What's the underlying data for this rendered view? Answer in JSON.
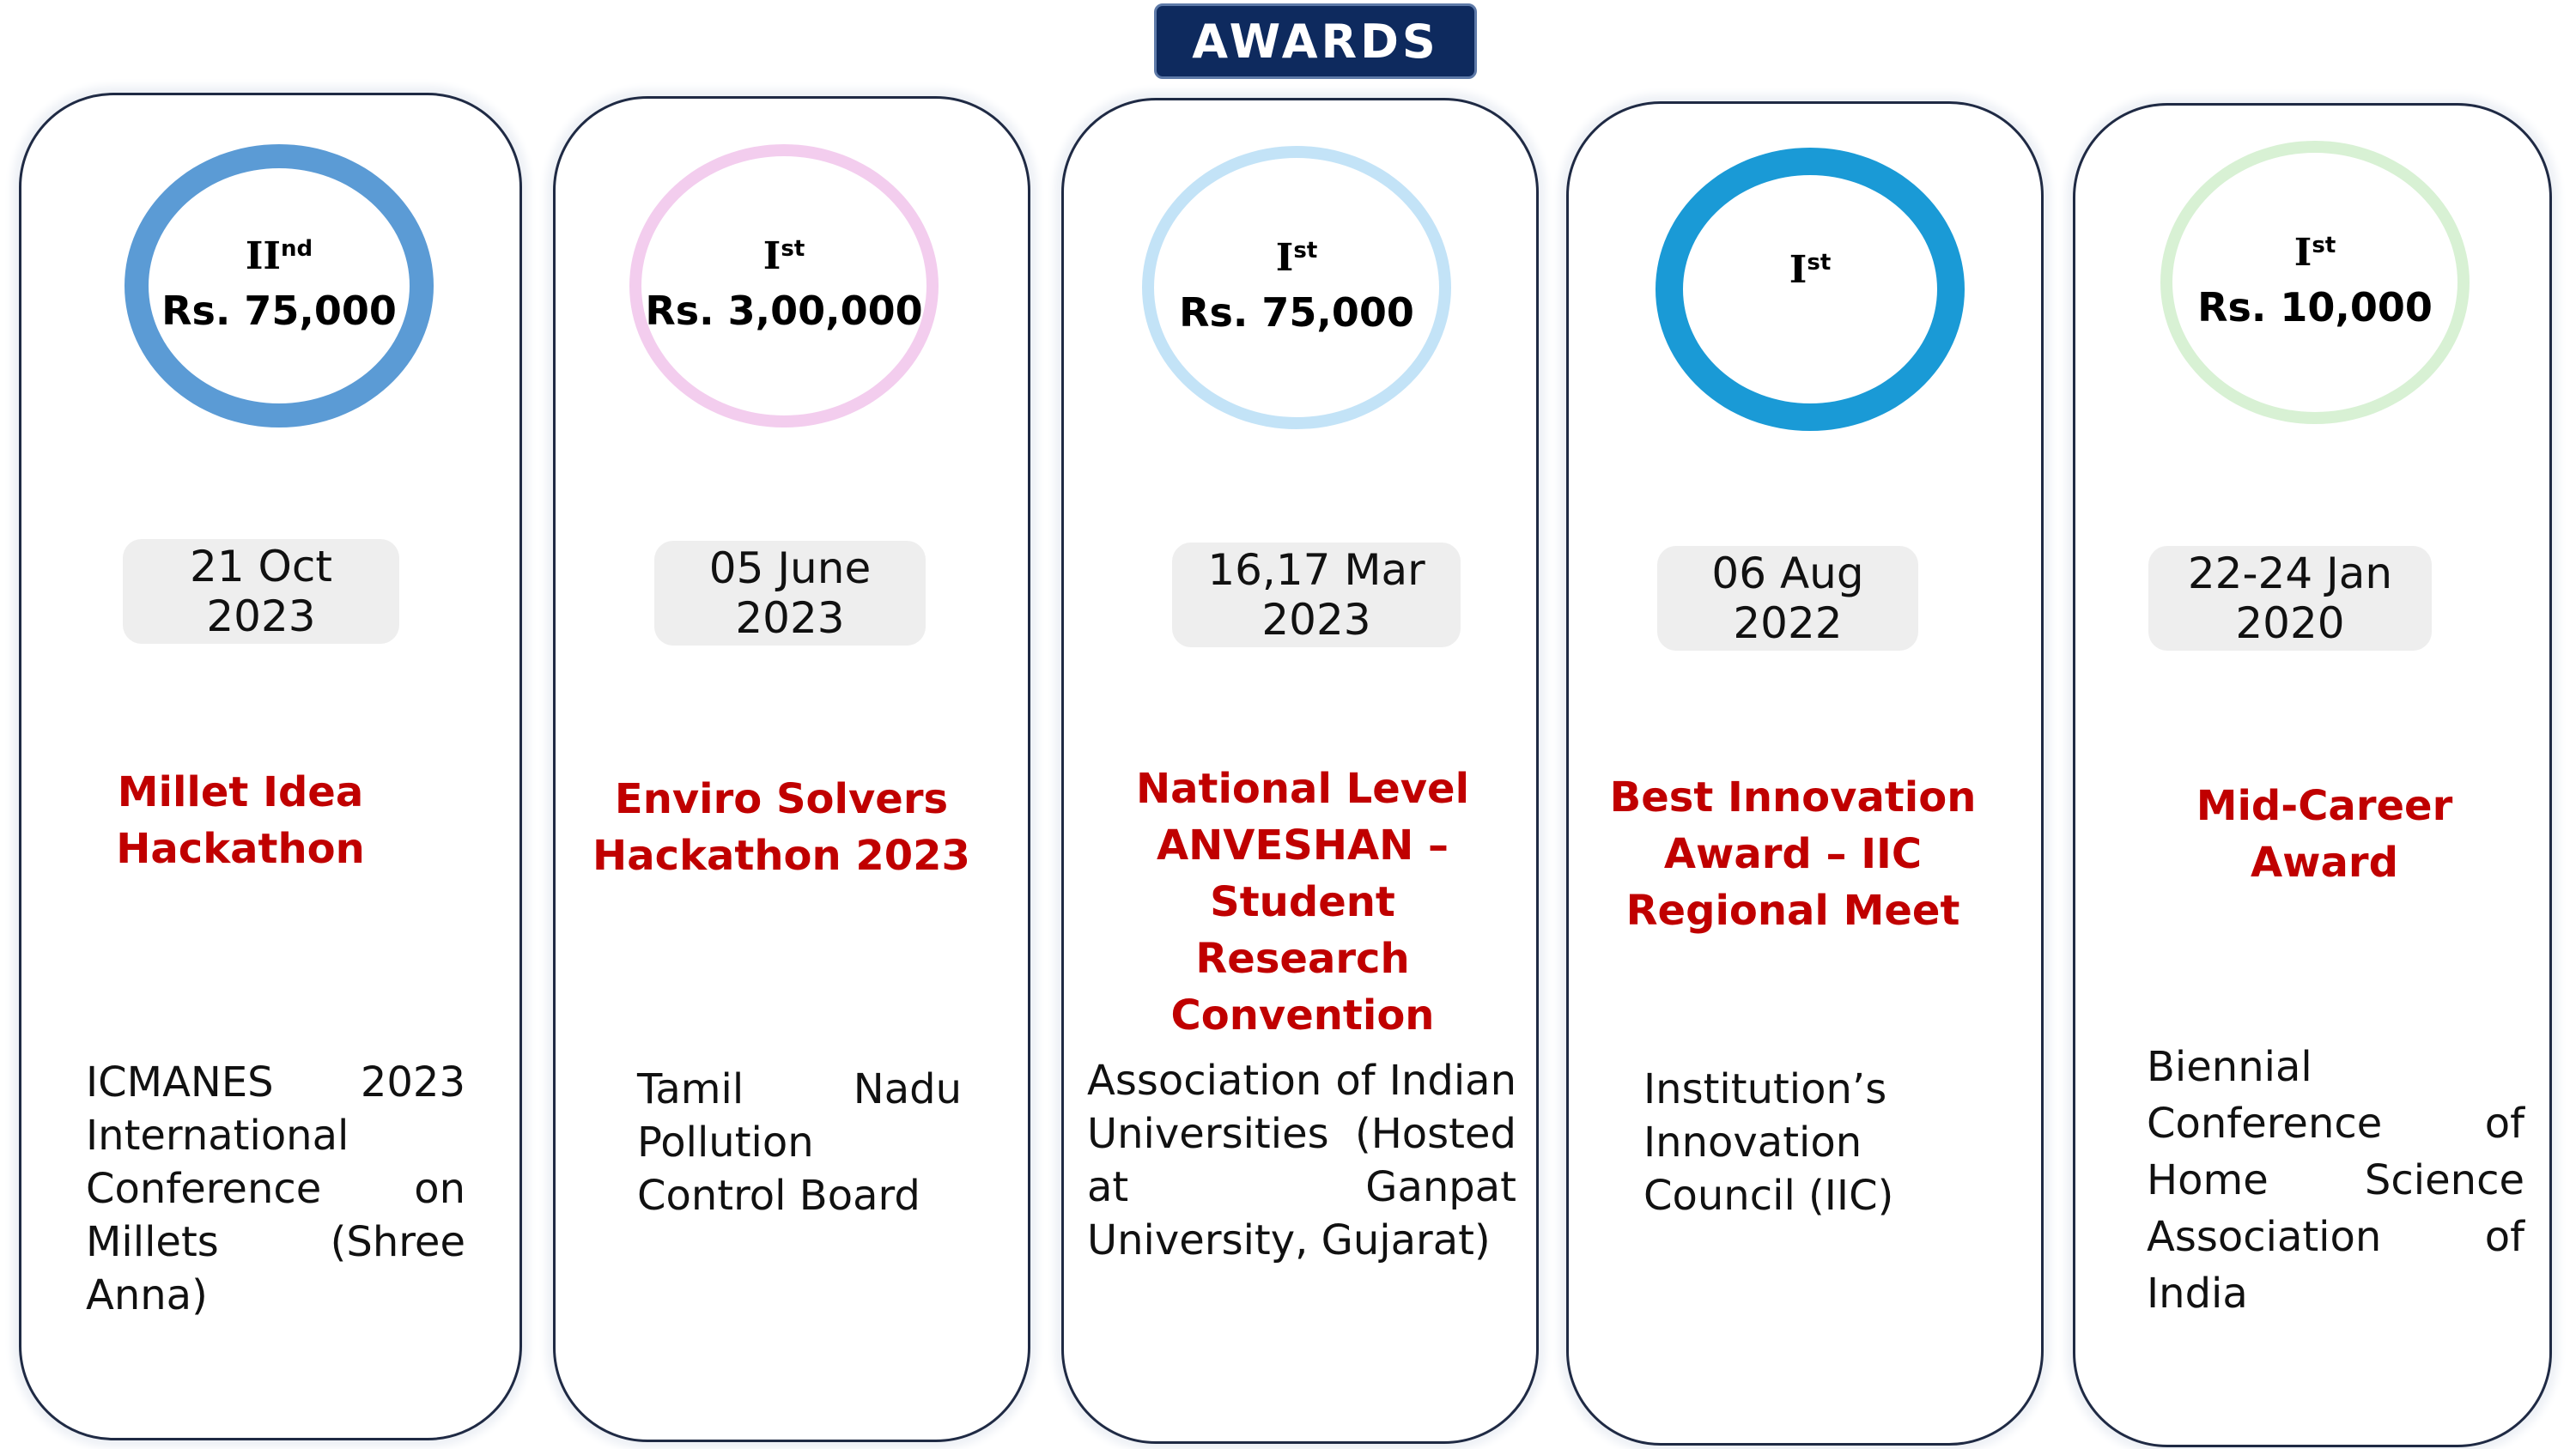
{
  "header": {
    "title": "AWARDS"
  },
  "colors": {
    "banner_bg": "#0e2a5e",
    "title_red": "#c00000",
    "ring_1": "#5b9bd5",
    "ring_2": "#f3cdee",
    "ring_3": "#c3e3f7",
    "ring_4": "#1a9ad6",
    "ring_5": "#d8f1d4"
  },
  "awards": [
    {
      "rank": "II",
      "rank_suffix": "nd",
      "prize": "Rs. 75,000",
      "date_line1": "21 Oct",
      "date_line2": "2023",
      "title": "Millet Idea Hackathon",
      "organizer": "ICMANES 2023 International Conference on Millets (Shree Anna)"
    },
    {
      "rank": "I",
      "rank_suffix": "st",
      "prize": "Rs. 3,00,000",
      "date_line1": "05 June",
      "date_line2": "2023",
      "title": "Enviro Solvers Hackathon 2023",
      "organizer": "Tamil Nadu Pollution Control Board"
    },
    {
      "rank": "I",
      "rank_suffix": "st",
      "prize": "Rs. 75,000",
      "date_line1": "16,17 Mar",
      "date_line2": "2023",
      "title": "National Level ANVESHAN – Student Research Convention",
      "organizer": "Association of Indian Universities (Hosted at Ganpat University, Gujarat)"
    },
    {
      "rank": "I",
      "rank_suffix": "st",
      "prize": "",
      "date_line1": "06 Aug",
      "date_line2": "2022",
      "title": "Best Innovation Award – IIC Regional Meet",
      "organizer": "Institution’s Innovation Council (IIC)"
    },
    {
      "rank": "I",
      "rank_suffix": "st",
      "prize": "Rs. 10,000",
      "date_line1": "22-24 Jan",
      "date_line2": "2020",
      "title": "Mid-Career Award",
      "organizer": "Biennial Conference of Home Science Association of India"
    }
  ]
}
